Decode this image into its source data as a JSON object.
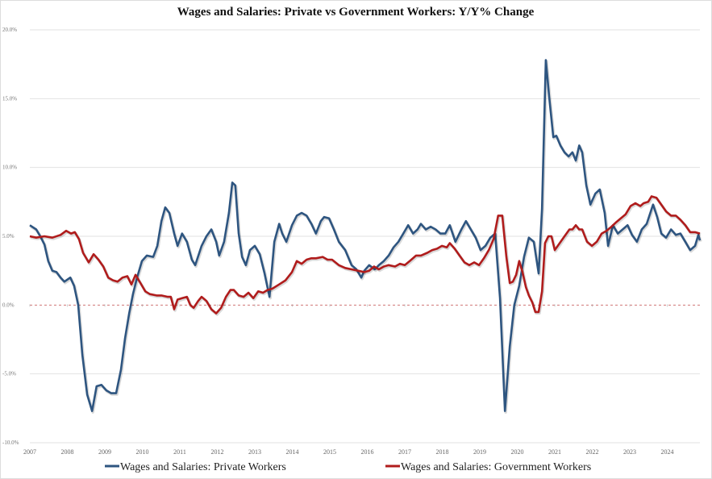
{
  "chart_data": {
    "type": "line",
    "title": "Wages and Salaries: Private vs Government Workers: Y/Y% Change",
    "xlabel": "",
    "ylabel": "",
    "xlim": [
      2007,
      2024.87
    ],
    "ylim": [
      -10,
      20
    ],
    "yticks": [
      20,
      15,
      10,
      5,
      0,
      -5,
      -10
    ],
    "ytick_labels": [
      "20.0%",
      "15.0%",
      "10.0%",
      "5.0%",
      "0.0%",
      "-5.0%",
      "-10.0%"
    ],
    "xticks": [
      2007,
      2008,
      2009,
      2010,
      2011,
      2012,
      2013,
      2014,
      2015,
      2016,
      2017,
      2018,
      2019,
      2020,
      2021,
      2022,
      2023,
      2024
    ],
    "xtick_labels": [
      "2007",
      "2008",
      "2009",
      "2010",
      "2011",
      "2012",
      "2013",
      "2014",
      "2015",
      "2016",
      "2017",
      "2018",
      "2019",
      "2020",
      "2021",
      "2022",
      "2023",
      "2024"
    ],
    "grid": true,
    "zero_line": "dashed",
    "legend_position": "bottom",
    "series": [
      {
        "name": "Wages and Salaries: Private Workers",
        "color": "#2e5580",
        "points": [
          [
            2007.0,
            5.8
          ],
          [
            2007.17,
            5.5
          ],
          [
            2007.28,
            5.0
          ],
          [
            2007.39,
            4.4
          ],
          [
            2007.49,
            3.2
          ],
          [
            2007.6,
            2.5
          ],
          [
            2007.71,
            2.4
          ],
          [
            2007.82,
            2.0
          ],
          [
            2007.92,
            1.7
          ],
          [
            2008.08,
            2.0
          ],
          [
            2008.18,
            1.4
          ],
          [
            2008.29,
            0.0
          ],
          [
            2008.4,
            -3.6
          ],
          [
            2008.53,
            -6.5
          ],
          [
            2008.66,
            -7.7
          ],
          [
            2008.78,
            -5.9
          ],
          [
            2008.91,
            -5.8
          ],
          [
            2009.04,
            -6.2
          ],
          [
            2009.17,
            -6.4
          ],
          [
            2009.3,
            -6.4
          ],
          [
            2009.43,
            -4.7
          ],
          [
            2009.54,
            -2.4
          ],
          [
            2009.65,
            -0.6
          ],
          [
            2009.75,
            0.8
          ],
          [
            2009.86,
            2.0
          ],
          [
            2009.99,
            3.2
          ],
          [
            2010.12,
            3.6
          ],
          [
            2010.29,
            3.5
          ],
          [
            2010.4,
            4.3
          ],
          [
            2010.51,
            6.1
          ],
          [
            2010.61,
            7.1
          ],
          [
            2010.72,
            6.7
          ],
          [
            2010.85,
            5.2
          ],
          [
            2010.94,
            4.3
          ],
          [
            2011.06,
            5.2
          ],
          [
            2011.19,
            4.6
          ],
          [
            2011.32,
            3.3
          ],
          [
            2011.41,
            2.9
          ],
          [
            2011.58,
            4.3
          ],
          [
            2011.71,
            5.0
          ],
          [
            2011.84,
            5.5
          ],
          [
            2011.97,
            4.6
          ],
          [
            2012.05,
            3.6
          ],
          [
            2012.18,
            4.6
          ],
          [
            2012.31,
            6.7
          ],
          [
            2012.4,
            8.9
          ],
          [
            2012.48,
            8.7
          ],
          [
            2012.57,
            5.2
          ],
          [
            2012.66,
            3.5
          ],
          [
            2012.76,
            2.9
          ],
          [
            2012.87,
            4.0
          ],
          [
            2013.0,
            4.3
          ],
          [
            2013.13,
            3.7
          ],
          [
            2013.26,
            2.3
          ],
          [
            2013.39,
            0.6
          ],
          [
            2013.52,
            4.6
          ],
          [
            2013.65,
            5.9
          ],
          [
            2013.73,
            5.2
          ],
          [
            2013.84,
            4.6
          ],
          [
            2013.99,
            5.8
          ],
          [
            2014.12,
            6.5
          ],
          [
            2014.25,
            6.7
          ],
          [
            2014.38,
            6.5
          ],
          [
            2014.51,
            5.9
          ],
          [
            2014.63,
            5.2
          ],
          [
            2014.76,
            6.1
          ],
          [
            2014.85,
            6.4
          ],
          [
            2014.98,
            6.3
          ],
          [
            2015.11,
            5.5
          ],
          [
            2015.24,
            4.6
          ],
          [
            2015.41,
            4.0
          ],
          [
            2015.58,
            2.9
          ],
          [
            2015.71,
            2.6
          ],
          [
            2015.84,
            2.0
          ],
          [
            2015.92,
            2.5
          ],
          [
            2016.05,
            2.9
          ],
          [
            2016.2,
            2.6
          ],
          [
            2016.31,
            2.9
          ],
          [
            2016.44,
            3.2
          ],
          [
            2016.57,
            3.6
          ],
          [
            2016.7,
            4.2
          ],
          [
            2016.83,
            4.6
          ],
          [
            2016.96,
            5.2
          ],
          [
            2017.09,
            5.8
          ],
          [
            2017.22,
            5.2
          ],
          [
            2017.34,
            5.5
          ],
          [
            2017.43,
            5.9
          ],
          [
            2017.56,
            5.5
          ],
          [
            2017.69,
            5.7
          ],
          [
            2017.82,
            5.5
          ],
          [
            2017.95,
            5.2
          ],
          [
            2018.08,
            5.2
          ],
          [
            2018.2,
            5.8
          ],
          [
            2018.35,
            4.6
          ],
          [
            2018.51,
            5.5
          ],
          [
            2018.63,
            6.1
          ],
          [
            2018.76,
            5.5
          ],
          [
            2018.89,
            4.9
          ],
          [
            2019.02,
            4.0
          ],
          [
            2019.15,
            4.3
          ],
          [
            2019.28,
            4.9
          ],
          [
            2019.41,
            5.2
          ],
          [
            2019.54,
            0.5
          ],
          [
            2019.67,
            -7.7
          ],
          [
            2019.8,
            -3.0
          ],
          [
            2019.92,
            0.0
          ],
          [
            2020.05,
            1.4
          ],
          [
            2020.18,
            3.5
          ],
          [
            2020.31,
            4.9
          ],
          [
            2020.44,
            4.6
          ],
          [
            2020.57,
            2.3
          ],
          [
            2020.66,
            7.0
          ],
          [
            2020.76,
            17.8
          ],
          [
            2020.85,
            15.1
          ],
          [
            2020.96,
            12.2
          ],
          [
            2021.04,
            12.3
          ],
          [
            2021.15,
            11.6
          ],
          [
            2021.26,
            11.1
          ],
          [
            2021.37,
            10.8
          ],
          [
            2021.47,
            11.1
          ],
          [
            2021.56,
            10.5
          ],
          [
            2021.65,
            11.6
          ],
          [
            2021.73,
            11.1
          ],
          [
            2021.84,
            8.7
          ],
          [
            2021.95,
            7.3
          ],
          [
            2022.08,
            8.1
          ],
          [
            2022.2,
            8.4
          ],
          [
            2022.33,
            6.7
          ],
          [
            2022.42,
            4.3
          ],
          [
            2022.55,
            5.8
          ],
          [
            2022.68,
            5.2
          ],
          [
            2022.81,
            5.5
          ],
          [
            2022.94,
            5.8
          ],
          [
            2023.06,
            5.1
          ],
          [
            2023.19,
            4.6
          ],
          [
            2023.32,
            5.5
          ],
          [
            2023.45,
            5.9
          ],
          [
            2023.62,
            7.3
          ],
          [
            2023.73,
            6.4
          ],
          [
            2023.84,
            5.2
          ],
          [
            2023.97,
            4.9
          ],
          [
            2024.1,
            5.5
          ],
          [
            2024.23,
            5.1
          ],
          [
            2024.35,
            5.2
          ],
          [
            2024.48,
            4.6
          ],
          [
            2024.61,
            4.0
          ],
          [
            2024.74,
            4.3
          ],
          [
            2024.83,
            5.1
          ],
          [
            2024.87,
            4.7
          ]
        ]
      },
      {
        "name": "Wages and Salaries: Government Workers",
        "color": "#b01c1c",
        "points": [
          [
            2007.0,
            5.0
          ],
          [
            2007.17,
            4.9
          ],
          [
            2007.39,
            5.0
          ],
          [
            2007.6,
            4.9
          ],
          [
            2007.82,
            5.1
          ],
          [
            2007.97,
            5.4
          ],
          [
            2008.1,
            5.2
          ],
          [
            2008.2,
            5.3
          ],
          [
            2008.31,
            4.8
          ],
          [
            2008.42,
            3.8
          ],
          [
            2008.57,
            3.1
          ],
          [
            2008.7,
            3.7
          ],
          [
            2008.83,
            3.3
          ],
          [
            2008.96,
            2.8
          ],
          [
            2009.09,
            2.0
          ],
          [
            2009.22,
            1.8
          ],
          [
            2009.34,
            1.7
          ],
          [
            2009.47,
            2.0
          ],
          [
            2009.6,
            2.1
          ],
          [
            2009.71,
            1.5
          ],
          [
            2009.82,
            2.2
          ],
          [
            2009.95,
            1.6
          ],
          [
            2010.08,
            1.0
          ],
          [
            2010.2,
            0.8
          ],
          [
            2010.38,
            0.7
          ],
          [
            2010.51,
            0.7
          ],
          [
            2010.68,
            0.6
          ],
          [
            2010.76,
            0.6
          ],
          [
            2010.85,
            -0.3
          ],
          [
            2010.94,
            0.4
          ],
          [
            2011.06,
            0.5
          ],
          [
            2011.19,
            0.6
          ],
          [
            2011.28,
            0.0
          ],
          [
            2011.37,
            -0.2
          ],
          [
            2011.49,
            0.3
          ],
          [
            2011.58,
            0.6
          ],
          [
            2011.71,
            0.3
          ],
          [
            2011.84,
            -0.3
          ],
          [
            2011.97,
            -0.6
          ],
          [
            2012.1,
            -0.2
          ],
          [
            2012.23,
            0.6
          ],
          [
            2012.35,
            1.1
          ],
          [
            2012.44,
            1.1
          ],
          [
            2012.57,
            0.7
          ],
          [
            2012.7,
            0.6
          ],
          [
            2012.83,
            0.9
          ],
          [
            2012.96,
            0.5
          ],
          [
            2013.09,
            1.0
          ],
          [
            2013.22,
            0.9
          ],
          [
            2013.34,
            1.1
          ],
          [
            2013.47,
            1.2
          ],
          [
            2013.65,
            1.5
          ],
          [
            2013.82,
            1.8
          ],
          [
            2013.99,
            2.4
          ],
          [
            2014.12,
            3.2
          ],
          [
            2014.25,
            3.0
          ],
          [
            2014.38,
            3.3
          ],
          [
            2014.51,
            3.4
          ],
          [
            2014.63,
            3.4
          ],
          [
            2014.81,
            3.5
          ],
          [
            2014.94,
            3.3
          ],
          [
            2015.06,
            3.3
          ],
          [
            2015.24,
            2.9
          ],
          [
            2015.41,
            2.7
          ],
          [
            2015.58,
            2.6
          ],
          [
            2015.75,
            2.5
          ],
          [
            2015.92,
            2.4
          ],
          [
            2016.05,
            2.5
          ],
          [
            2016.18,
            2.8
          ],
          [
            2016.31,
            2.6
          ],
          [
            2016.44,
            2.8
          ],
          [
            2016.57,
            2.9
          ],
          [
            2016.74,
            2.8
          ],
          [
            2016.87,
            3.0
          ],
          [
            2017.0,
            2.9
          ],
          [
            2017.13,
            3.2
          ],
          [
            2017.3,
            3.6
          ],
          [
            2017.43,
            3.6
          ],
          [
            2017.6,
            3.8
          ],
          [
            2017.73,
            4.0
          ],
          [
            2017.86,
            4.1
          ],
          [
            2017.99,
            4.3
          ],
          [
            2018.12,
            4.2
          ],
          [
            2018.2,
            4.5
          ],
          [
            2018.33,
            4.1
          ],
          [
            2018.46,
            3.6
          ],
          [
            2018.59,
            3.1
          ],
          [
            2018.72,
            2.9
          ],
          [
            2018.85,
            3.1
          ],
          [
            2018.98,
            2.9
          ],
          [
            2019.11,
            3.4
          ],
          [
            2019.24,
            4.0
          ],
          [
            2019.37,
            4.8
          ],
          [
            2019.49,
            6.5
          ],
          [
            2019.6,
            6.5
          ],
          [
            2019.71,
            3.5
          ],
          [
            2019.8,
            1.6
          ],
          [
            2019.88,
            1.7
          ],
          [
            2019.97,
            2.2
          ],
          [
            2020.05,
            3.2
          ],
          [
            2020.14,
            2.4
          ],
          [
            2020.23,
            1.3
          ],
          [
            2020.31,
            0.7
          ],
          [
            2020.4,
            0.2
          ],
          [
            2020.48,
            -0.5
          ],
          [
            2020.57,
            -0.5
          ],
          [
            2020.66,
            1.0
          ],
          [
            2020.74,
            4.5
          ],
          [
            2020.83,
            5.0
          ],
          [
            2020.91,
            5.0
          ],
          [
            2021.0,
            4.0
          ],
          [
            2021.13,
            4.5
          ],
          [
            2021.26,
            5.0
          ],
          [
            2021.39,
            5.5
          ],
          [
            2021.47,
            5.5
          ],
          [
            2021.56,
            5.8
          ],
          [
            2021.65,
            5.5
          ],
          [
            2021.73,
            5.5
          ],
          [
            2021.86,
            4.6
          ],
          [
            2021.99,
            4.3
          ],
          [
            2022.12,
            4.6
          ],
          [
            2022.25,
            5.2
          ],
          [
            2022.38,
            5.4
          ],
          [
            2022.51,
            5.7
          ],
          [
            2022.63,
            6.0
          ],
          [
            2022.76,
            6.3
          ],
          [
            2022.89,
            6.6
          ],
          [
            2023.02,
            7.2
          ],
          [
            2023.15,
            7.4
          ],
          [
            2023.28,
            7.2
          ],
          [
            2023.37,
            7.4
          ],
          [
            2023.49,
            7.5
          ],
          [
            2023.58,
            7.9
          ],
          [
            2023.71,
            7.8
          ],
          [
            2023.84,
            7.3
          ],
          [
            2023.97,
            6.8
          ],
          [
            2024.1,
            6.5
          ],
          [
            2024.23,
            6.5
          ],
          [
            2024.35,
            6.2
          ],
          [
            2024.48,
            5.8
          ],
          [
            2024.61,
            5.3
          ],
          [
            2024.74,
            5.3
          ],
          [
            2024.87,
            5.2
          ]
        ]
      }
    ]
  }
}
